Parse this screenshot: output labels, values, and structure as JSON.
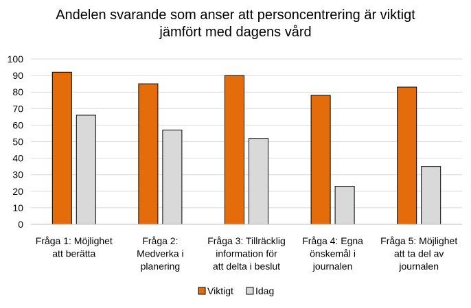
{
  "chart_data": {
    "type": "bar",
    "title": [
      "Andelen svarande som anser att personcentrering är viktigt",
      "jämfört med dagens vård"
    ],
    "xlabel": "",
    "ylabel": "",
    "ylim": [
      0,
      100
    ],
    "yticks": [
      0,
      10,
      20,
      30,
      40,
      50,
      60,
      70,
      80,
      90,
      100
    ],
    "grid": true,
    "legend_position": "bottom",
    "categories": [
      [
        "Fråga 1: Möjlighet",
        "att berätta"
      ],
      [
        "Fråga 2:",
        "Medverka i",
        "planering"
      ],
      [
        "Fråga 3: Tillräcklig",
        "information för",
        "att delta i beslut"
      ],
      [
        "Fråga 4: Egna",
        "önskemål i",
        "journalen"
      ],
      [
        "Fråga 5: Möjlighet",
        "att ta del av",
        "journalen"
      ]
    ],
    "series": [
      {
        "name": "Viktigt",
        "color": "#E46C0A",
        "values": [
          92,
          85,
          90,
          78,
          83
        ]
      },
      {
        "name": "Idag",
        "color": "#D9D9D9",
        "values": [
          66,
          57,
          52,
          23,
          35
        ]
      }
    ]
  }
}
